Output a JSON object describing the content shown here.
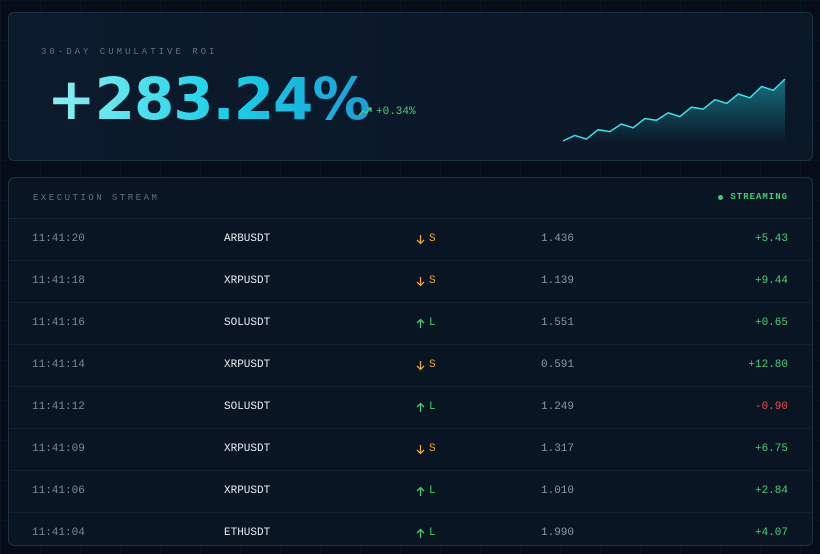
{
  "roi_card": {
    "title": "30-DAY CUMULATIVE ROI",
    "value": "+283.24%",
    "delta": "+0.34%",
    "sparkline": [
      2,
      5,
      3,
      8,
      7,
      11,
      9,
      14,
      13,
      17,
      15,
      20,
      19,
      24,
      22,
      27,
      25,
      31,
      29,
      35
    ]
  },
  "stream": {
    "title": "EXECUTION STREAM",
    "status": "STREAMING",
    "rows": [
      {
        "time": "11:41:20",
        "symbol": "ARBUSDT",
        "side": "S",
        "price": "1.436",
        "pnl": "+5.43"
      },
      {
        "time": "11:41:18",
        "symbol": "XRPUSDT",
        "side": "S",
        "price": "1.139",
        "pnl": "+9.44"
      },
      {
        "time": "11:41:16",
        "symbol": "SOLUSDT",
        "side": "L",
        "price": "1.551",
        "pnl": "+0.65"
      },
      {
        "time": "11:41:14",
        "symbol": "XRPUSDT",
        "side": "S",
        "price": "0.591",
        "pnl": "+12.80"
      },
      {
        "time": "11:41:12",
        "symbol": "SOLUSDT",
        "side": "L",
        "price": "1.249",
        "pnl": "-0.90"
      },
      {
        "time": "11:41:09",
        "symbol": "XRPUSDT",
        "side": "S",
        "price": "1.317",
        "pnl": "+6.75"
      },
      {
        "time": "11:41:06",
        "symbol": "XRPUSDT",
        "side": "L",
        "price": "1.010",
        "pnl": "+2.84"
      },
      {
        "time": "11:41:04",
        "symbol": "ETHUSDT",
        "side": "L",
        "price": "1.990",
        "pnl": "+4.07"
      }
    ]
  }
}
